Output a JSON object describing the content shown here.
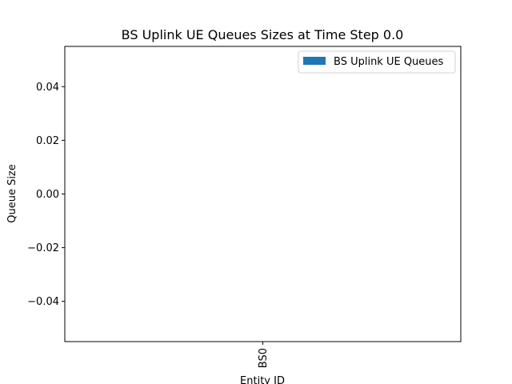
{
  "chart_data": {
    "type": "bar",
    "title": "BS Uplink UE Queues Sizes at Time Step 0.0",
    "xlabel": "Entity ID",
    "ylabel": "Queue Size",
    "categories": [
      "BS0"
    ],
    "series": [
      {
        "name": "BS Uplink UE Queues",
        "values": [
          0.0
        ],
        "color": "#1f77b4"
      }
    ],
    "ylim": [
      -0.055,
      0.055
    ],
    "yticks": [
      -0.04,
      -0.02,
      0.0,
      0.02,
      0.04
    ],
    "ytick_labels": [
      "−0.04",
      "−0.02",
      "0.00",
      "0.02",
      "0.04"
    ],
    "grid": false,
    "legend_position": "top-right"
  }
}
